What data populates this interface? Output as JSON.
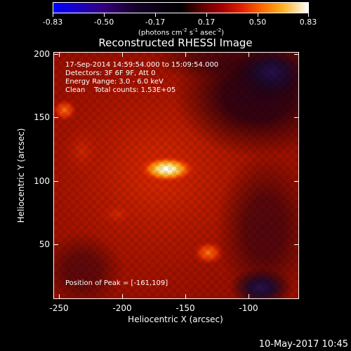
{
  "colorbar": {
    "ticks": [
      "-0.83",
      "-0.50",
      "-0.17",
      "0.17",
      "0.50",
      "0.83"
    ],
    "unit_prefix": "(photons cm",
    "unit_exp1": "-2",
    "unit_mid": " s",
    "unit_exp2": "-1",
    "unit_mid2": " asec",
    "unit_exp3": "-2",
    "unit_suffix": ")"
  },
  "title": "Reconstructed RHESSI Image",
  "annotations": {
    "line1": "17-Sep-2014 14:59:54.000 to 15:09:54.000",
    "line2": "Detectors: 3F 6F 9F, Att 0",
    "line3": "Energy Range: 3.0 - 6.0 keV",
    "line4": "Clean    Total counts: 1.53E+05",
    "peak": "Position of Peak = [-161,109]"
  },
  "axes": {
    "x_title": "Heliocentric X (arcsec)",
    "y_title": "Heliocentric Y (arcsec)",
    "x_ticks": [
      "-250",
      "-200",
      "-150",
      "-100"
    ],
    "y_ticks": [
      "200",
      "150",
      "100",
      "50"
    ],
    "x_range": [
      -253,
      -60
    ],
    "y_range": [
      6,
      201
    ]
  },
  "image_data": {
    "type": "heatmap",
    "peak_position": [
      -161,
      109
    ],
    "secondary_sources": [
      [
        -127,
        44
      ],
      [
        -248,
        158
      ]
    ],
    "negative_regions": [
      [
        -75,
        195
      ],
      [
        -95,
        15
      ]
    ]
  },
  "timestamp": "10-May-2017 10:45"
}
